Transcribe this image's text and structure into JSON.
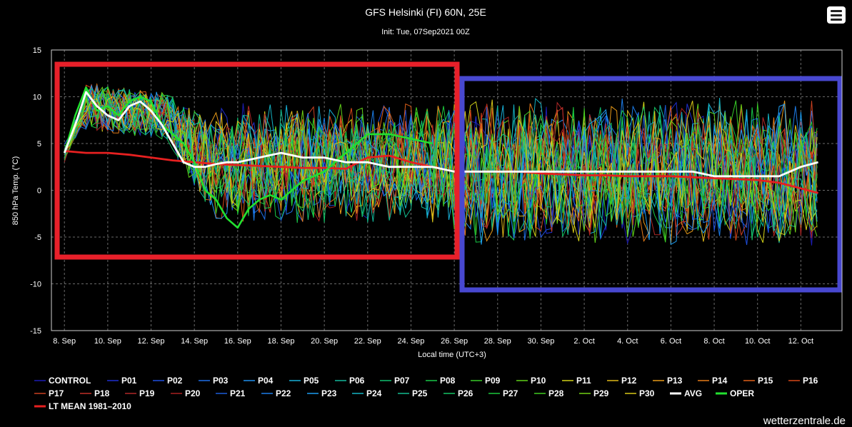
{
  "title": "GFS Helsinki (FI) 60N, 25E",
  "subtitle": "Init: Tue, 07Sep2021 00Z",
  "watermark": "wetterzentrale.de",
  "menu_icon": "hamburger-menu-icon",
  "chart_data": {
    "type": "line",
    "xlabel": "Local time (UTC+3)",
    "ylabel": "850 hPa Temp. (°C)",
    "ylim": [
      -15,
      15
    ],
    "yticks": [
      -15,
      -10,
      -5,
      0,
      5,
      10,
      15
    ],
    "x_range_days": [
      7.4,
      43.9
    ],
    "x_ticks": [
      {
        "label": "8. Sep",
        "day": 8
      },
      {
        "label": "10. Sep",
        "day": 10
      },
      {
        "label": "12. Sep",
        "day": 12
      },
      {
        "label": "14. Sep",
        "day": 14
      },
      {
        "label": "16. Sep",
        "day": 16
      },
      {
        "label": "18. Sep",
        "day": 18
      },
      {
        "label": "20. Sep",
        "day": 20
      },
      {
        "label": "22. Sep",
        "day": 22
      },
      {
        "label": "24. Sep",
        "day": 24
      },
      {
        "label": "26. Sep",
        "day": 26
      },
      {
        "label": "28. Sep",
        "day": 28
      },
      {
        "label": "30. Sep",
        "day": 30
      },
      {
        "label": "2. Oct",
        "day": 32
      },
      {
        "label": "4. Oct",
        "day": 34
      },
      {
        "label": "6. Oct",
        "day": 36
      },
      {
        "label": "8. Oct",
        "day": 38
      },
      {
        "label": "10. Oct",
        "day": 40
      },
      {
        "label": "12. Oct",
        "day": 42
      }
    ],
    "grid": true,
    "legend_position": "bottom",
    "highlight_boxes": [
      {
        "color": "#e8202a"
      },
      {
        "color": "#4848d0"
      }
    ],
    "members": [
      {
        "name": "CONTROL",
        "color": "#1c1cb4"
      },
      {
        "name": "P01",
        "color": "#1f2fd0"
      },
      {
        "name": "P02",
        "color": "#1f4fe0"
      },
      {
        "name": "P03",
        "color": "#1f6fe8"
      },
      {
        "name": "P04",
        "color": "#1f8fee"
      },
      {
        "name": "P05",
        "color": "#18b0d8"
      },
      {
        "name": "P06",
        "color": "#12b89c"
      },
      {
        "name": "P07",
        "color": "#10c070"
      },
      {
        "name": "P08",
        "color": "#18c848"
      },
      {
        "name": "P09",
        "color": "#38cc28"
      },
      {
        "name": "P10",
        "color": "#60d018"
      },
      {
        "name": "P11",
        "color": "#d0d018"
      },
      {
        "name": "P12",
        "color": "#e0b818"
      },
      {
        "name": "P13",
        "color": "#e89a18"
      },
      {
        "name": "P14",
        "color": "#e87c18"
      },
      {
        "name": "P15",
        "color": "#e06018"
      },
      {
        "name": "P16",
        "color": "#d84818"
      },
      {
        "name": "P17",
        "color": "#c84020"
      },
      {
        "name": "P18",
        "color": "#c03028"
      },
      {
        "name": "P19",
        "color": "#b02828"
      },
      {
        "name": "P20",
        "color": "#a82020"
      },
      {
        "name": "P21",
        "color": "#1c5cd8"
      },
      {
        "name": "P22",
        "color": "#1c7ce8"
      },
      {
        "name": "P23",
        "color": "#1c9cf0"
      },
      {
        "name": "P24",
        "color": "#14b4c4"
      },
      {
        "name": "P25",
        "color": "#12bc90"
      },
      {
        "name": "P26",
        "color": "#14c464"
      },
      {
        "name": "P27",
        "color": "#1cc83c"
      },
      {
        "name": "P28",
        "color": "#40cc20"
      },
      {
        "name": "P29",
        "color": "#70d014"
      },
      {
        "name": "P30",
        "color": "#d8c818"
      }
    ],
    "avg": {
      "name": "AVG",
      "color": "#ffffff",
      "x": [
        8.0,
        8.5,
        9.0,
        9.5,
        10.0,
        10.5,
        11.0,
        11.5,
        12.0,
        12.5,
        13.0,
        13.5,
        14.0,
        14.5,
        15.0,
        15.5,
        16.0,
        17.0,
        18.0,
        19.0,
        20.0,
        21.0,
        22.0,
        23.0,
        24.0,
        25.0,
        26.0,
        27.0,
        28.0,
        29.0,
        30.0,
        31.0,
        32.0,
        33.0,
        34.0,
        35.0,
        36.0,
        37.0,
        38.0,
        39.0,
        40.0,
        41.0,
        42.0,
        42.8
      ],
      "y": [
        4,
        7,
        10.5,
        9,
        8,
        7.5,
        9,
        9.5,
        8.5,
        7,
        5,
        3,
        2.5,
        2.5,
        2.8,
        3,
        3,
        3.5,
        4,
        3.5,
        3.5,
        3,
        3,
        2.5,
        2.5,
        2.5,
        2,
        2,
        2,
        2,
        2,
        2,
        2,
        2,
        2,
        2,
        2,
        2,
        1.5,
        1.5,
        1.5,
        1.5,
        2.5,
        3
      ]
    },
    "oper": {
      "name": "OPER",
      "color": "#22e030",
      "x": [
        8.0,
        8.5,
        9.0,
        9.5,
        10.0,
        10.5,
        11.0,
        11.5,
        12.0,
        12.5,
        13.0,
        13.5,
        14.0,
        14.5,
        15.0,
        15.5,
        16.0,
        16.5,
        17.0,
        17.5,
        18.0,
        19.0,
        20.0,
        21.0,
        22.0,
        23.0,
        24.0,
        25.0
      ],
      "y": [
        4,
        8,
        11,
        8.5,
        9,
        8,
        9.5,
        10,
        9.5,
        7,
        6,
        5,
        3,
        0,
        -1,
        -3,
        -4,
        -2,
        -1,
        -0.5,
        -1,
        1,
        2,
        4,
        6,
        6,
        5.5,
        5
      ]
    },
    "lt_mean": {
      "name": "LT MEAN 1981–2010",
      "color": "#e62020",
      "x": [
        8,
        9,
        10,
        11,
        12,
        13,
        14,
        15,
        16,
        17,
        18,
        19,
        20,
        21,
        22,
        23,
        24,
        25,
        26,
        27,
        28,
        29,
        30,
        31,
        32,
        33,
        34,
        35,
        36,
        37,
        38,
        39,
        40,
        41,
        42,
        42.8
      ],
      "y": [
        4.2,
        4,
        4,
        3.8,
        3.5,
        3.2,
        3,
        2.8,
        2.7,
        2.6,
        2.5,
        2.4,
        2.4,
        2.3,
        3.5,
        3.7,
        3,
        2.5,
        2,
        2,
        2,
        2,
        1.8,
        1.7,
        1.6,
        1.6,
        1.5,
        1.5,
        1.5,
        1.4,
        1.3,
        1.2,
        1.1,
        0.8,
        0.2,
        -0.3
      ]
    }
  }
}
